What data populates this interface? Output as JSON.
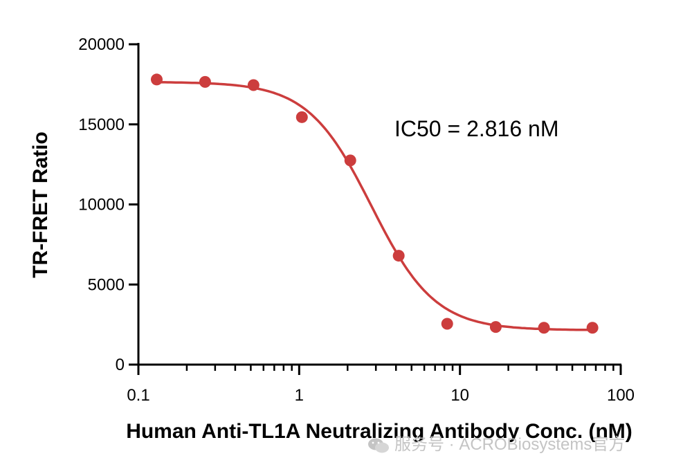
{
  "chart_data": {
    "type": "scatter",
    "xlabel": "Human Anti-TL1A Neutralizing Antibody Conc. (nM)",
    "ylabel": "TR-FRET Ratio",
    "x_scale": "log",
    "xlim": [
      0.1,
      100
    ],
    "ylim": [
      0,
      20000
    ],
    "x_ticks": [
      0.1,
      1,
      10,
      100
    ],
    "x_tick_labels": [
      "0.1",
      "1",
      "10",
      "100"
    ],
    "y_ticks": [
      0,
      5000,
      10000,
      15000,
      20000
    ],
    "y_tick_labels": [
      "0",
      "5000",
      "10000",
      "15000",
      "20000"
    ],
    "grid": false,
    "color": "#cc3d3d",
    "series": [
      {
        "x": [
          0.13,
          0.26,
          0.52,
          1.04,
          2.08,
          4.16,
          8.33,
          16.7,
          33.3,
          66.7
        ],
        "y": [
          17800,
          17650,
          17450,
          15450,
          12750,
          6800,
          2550,
          2350,
          2300,
          2300
        ],
        "fit": {
          "model": "4PL",
          "top": 17650,
          "bottom": 2150,
          "ic50": 2.816,
          "hill": 2.2
        }
      }
    ],
    "annotations": [
      {
        "text": "IC50 = 2.816 nM"
      }
    ]
  },
  "watermark": {
    "text": "服务号 · ACROBiosystems官方",
    "icon": "wechat-icon"
  }
}
